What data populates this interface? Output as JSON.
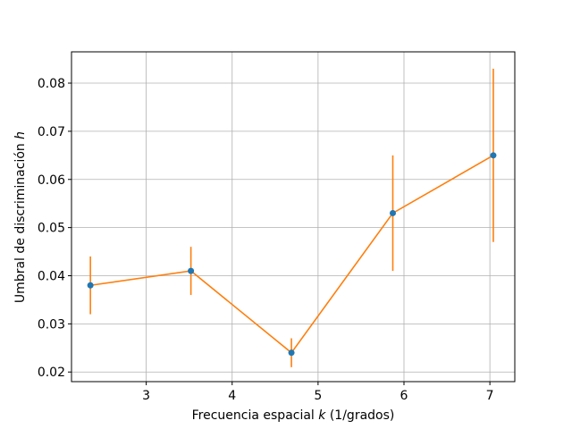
{
  "chart_data": {
    "type": "line",
    "xlabel_parts": [
      "Frecuencia espacial ",
      "k",
      " (1/grados)"
    ],
    "ylabel_parts": [
      "Umbral de discriminación ",
      "h"
    ],
    "xlim": [
      2.13,
      7.29
    ],
    "ylim": [
      0.018,
      0.0865
    ],
    "x_ticks": [
      3,
      4,
      5,
      6,
      7
    ],
    "y_ticks": [
      0.02,
      0.03,
      0.04,
      0.05,
      0.06,
      0.07,
      0.08
    ],
    "x_tick_labels": [
      "3",
      "4",
      "5",
      "6",
      "7"
    ],
    "y_tick_labels": [
      "0.02",
      "0.03",
      "0.04",
      "0.05",
      "0.06",
      "0.07",
      "0.08"
    ],
    "grid": true,
    "legend": "none",
    "series": [
      {
        "x": [
          2.35,
          3.52,
          4.69,
          5.87,
          7.04
        ],
        "y": [
          0.038,
          0.041,
          0.024,
          0.053,
          0.065
        ],
        "yerr": [
          0.006,
          0.005,
          0.003,
          0.012,
          0.018
        ],
        "line_color": "#ff7f0e",
        "marker_color": "#1f77b4"
      }
    ]
  }
}
